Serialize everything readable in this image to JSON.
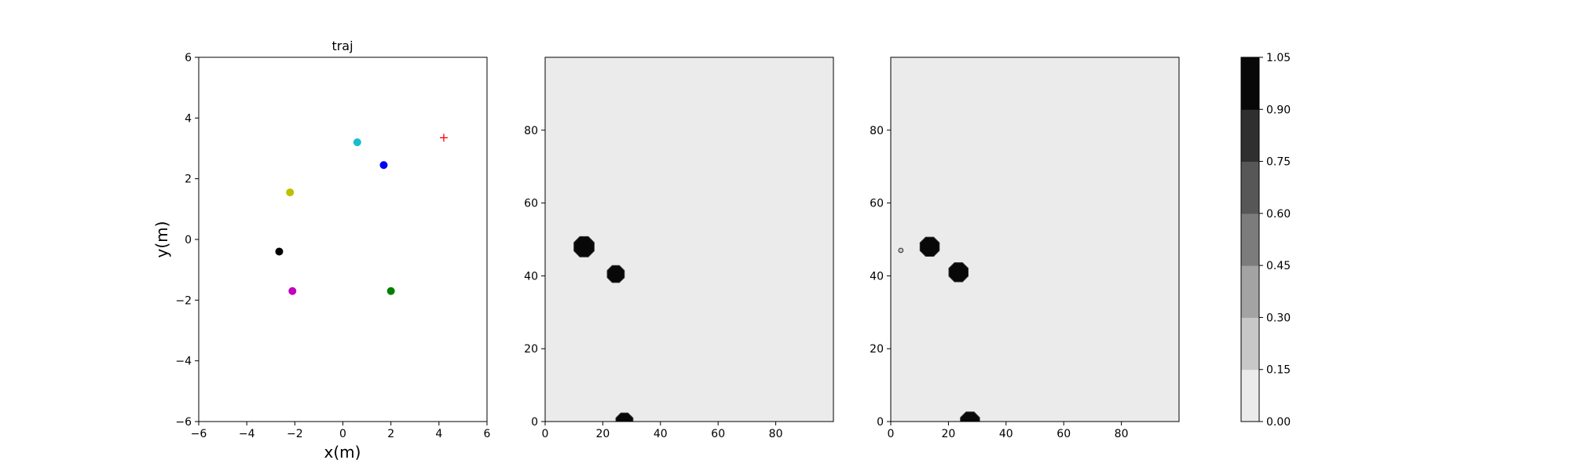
{
  "chart_data": [
    {
      "type": "scatter",
      "title": "traj",
      "xlabel": "x(m)",
      "ylabel": "y(m)",
      "xlim": [
        -6,
        6
      ],
      "ylim": [
        -6,
        6
      ],
      "xticks": [
        -6,
        -4,
        -2,
        0,
        2,
        4,
        6
      ],
      "yticks": [
        -6,
        -4,
        -2,
        0,
        2,
        4,
        6
      ],
      "grid": false,
      "points": [
        {
          "x": 0.6,
          "y": 3.2,
          "color": "#17becf",
          "marker": "circle"
        },
        {
          "x": 1.7,
          "y": 2.45,
          "color": "#0000ff",
          "marker": "circle"
        },
        {
          "x": -2.2,
          "y": 1.55,
          "color": "#bfbf00",
          "marker": "circle"
        },
        {
          "x": -2.65,
          "y": -0.4,
          "color": "#000000",
          "marker": "circle"
        },
        {
          "x": -2.1,
          "y": -1.7,
          "color": "#bf00bf",
          "marker": "circle"
        },
        {
          "x": 2.0,
          "y": -1.7,
          "color": "#008000",
          "marker": "circle"
        },
        {
          "x": 4.2,
          "y": 3.35,
          "color": "#ff0000",
          "marker": "plus"
        }
      ]
    },
    {
      "type": "heatmap",
      "xlim": [
        0,
        100
      ],
      "ylim": [
        0,
        100
      ],
      "xticks": [
        0,
        20,
        40,
        60,
        80
      ],
      "yticks": [
        0,
        20,
        40,
        60,
        80
      ],
      "background_value": 0.07,
      "blobs": [
        {
          "x": 13.5,
          "y": 48,
          "r": 3.8,
          "value": 1.0
        },
        {
          "x": 24.5,
          "y": 40.5,
          "r": 3.2,
          "value": 1.0
        },
        {
          "x": 27.5,
          "y": 0,
          "r": 3.2,
          "value": 1.0
        }
      ]
    },
    {
      "type": "heatmap",
      "xlim": [
        0,
        100
      ],
      "ylim": [
        0,
        100
      ],
      "xticks": [
        0,
        20,
        40,
        60,
        80
      ],
      "yticks": [
        0,
        20,
        40,
        60,
        80
      ],
      "background_value": 0.07,
      "blobs": [
        {
          "x": 13.5,
          "y": 48,
          "r": 3.6,
          "value": 1.0
        },
        {
          "x": 23.5,
          "y": 41,
          "r": 3.6,
          "value": 1.0
        },
        {
          "x": 27.5,
          "y": 0,
          "r": 3.6,
          "value": 1.0
        },
        {
          "x": 3.5,
          "y": 47,
          "r": 0.8,
          "value": 0.2
        }
      ]
    }
  ],
  "colorbar": {
    "ticks": [
      "0.00",
      "0.15",
      "0.30",
      "0.45",
      "0.60",
      "0.75",
      "0.90",
      "1.05"
    ],
    "levels": [
      "#ebebeb",
      "#c8c8c8",
      "#a3a3a3",
      "#7c7c7c",
      "#575757",
      "#2f2f2f",
      "#080808"
    ]
  }
}
